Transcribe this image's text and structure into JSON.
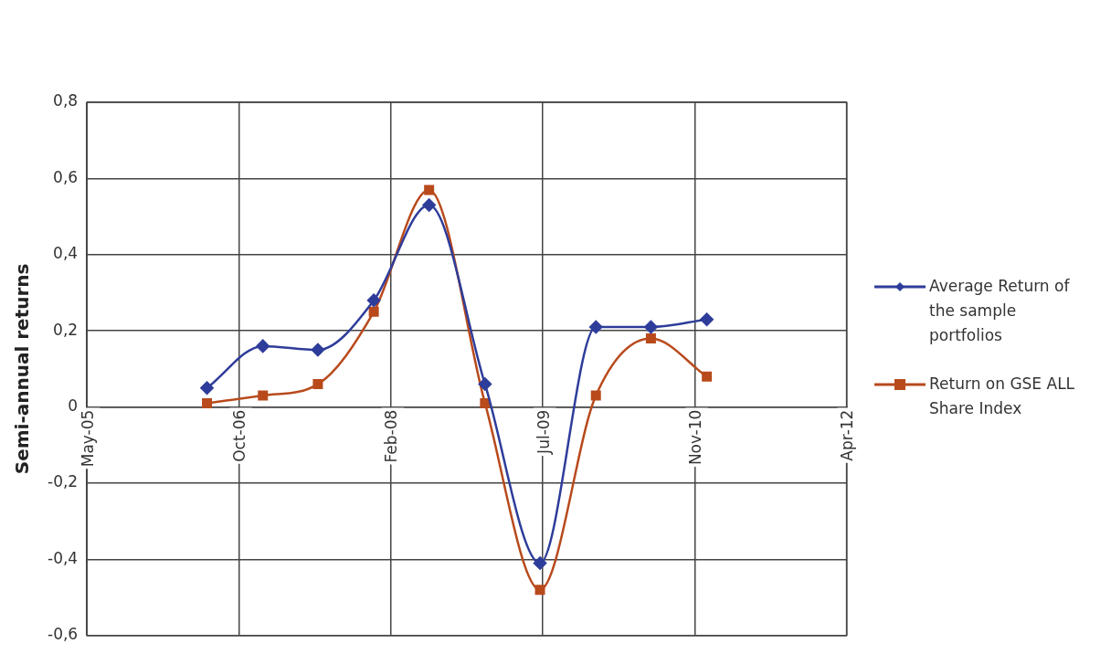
{
  "chart_data": {
    "type": "line",
    "ylabel": "Semi-annual returns",
    "x": [
      "2006-06-30",
      "2006-12-31",
      "2007-06-30",
      "2007-12-31",
      "2008-06-30",
      "2008-12-31",
      "2009-06-30",
      "2009-12-31",
      "2010-06-30",
      "2010-12-31"
    ],
    "series": [
      {
        "name": "Average Return of the sample portfolios",
        "color": "#2e3d9a",
        "marker": "diamond",
        "values": [
          0.05,
          0.16,
          0.15,
          0.28,
          0.53,
          0.06,
          -0.41,
          0.21,
          0.21,
          0.23
        ]
      },
      {
        "name": "Return on GSE ALL Share Index",
        "color": "#b84a1c",
        "marker": "square",
        "values": [
          0.01,
          0.03,
          0.06,
          0.25,
          0.57,
          0.01,
          -0.48,
          0.03,
          0.18,
          0.08
        ]
      }
    ],
    "xlim": [
      "2005-05-31",
      "2012-04-04"
    ],
    "xticks": [
      {
        "value": "2005-05-31",
        "label": "May-05"
      },
      {
        "value": "2006-10-13",
        "label": "Oct-06"
      },
      {
        "value": "2008-02-25",
        "label": "Feb-08"
      },
      {
        "value": "2009-07-09",
        "label": "Jul-09"
      },
      {
        "value": "2010-11-21",
        "label": "Nov-10"
      },
      {
        "value": "2012-04-04",
        "label": "Apr-12"
      }
    ],
    "ylim": [
      -0.6,
      0.8
    ],
    "yticks": [
      {
        "value": -0.6,
        "label": "-0,6"
      },
      {
        "value": -0.4,
        "label": "-0,4"
      },
      {
        "value": -0.2,
        "label": "-0,2"
      },
      {
        "value": 0,
        "label": "0"
      },
      {
        "value": 0.2,
        "label": "0,2"
      },
      {
        "value": 0.4,
        "label": "0,4"
      },
      {
        "value": 0.6,
        "label": "0,6"
      },
      {
        "value": 0.8,
        "label": "0,8"
      }
    ],
    "grid": true,
    "legend": "right"
  }
}
